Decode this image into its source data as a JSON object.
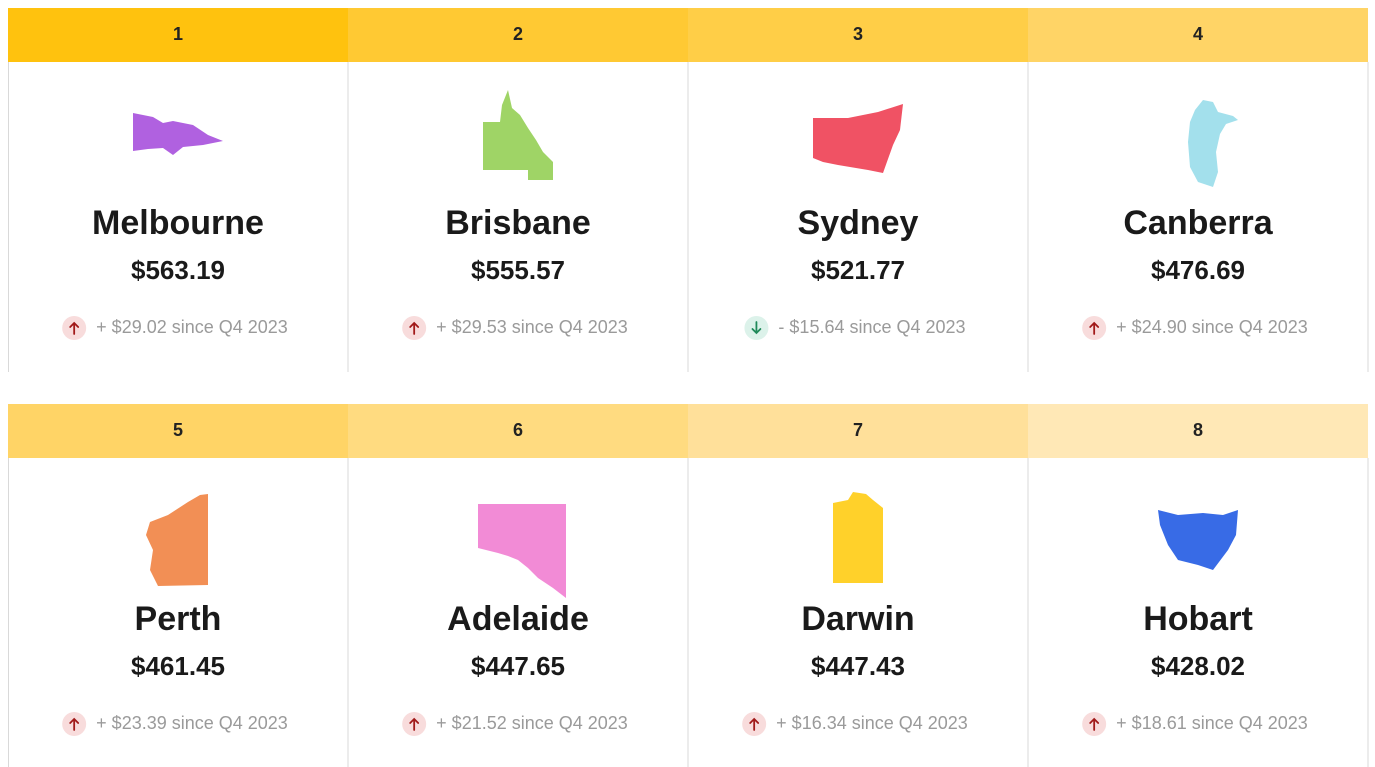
{
  "cards": [
    {
      "rank": "1",
      "city": "Melbourne",
      "price": "$563.19",
      "change": "+ $29.02 since Q4 2023"
    },
    {
      "rank": "2",
      "city": "Brisbane",
      "price": "$555.57",
      "change": "+ $29.53 since Q4 2023"
    },
    {
      "rank": "3",
      "city": "Sydney",
      "price": "$521.77",
      "change": "- $15.64 since Q4 2023"
    },
    {
      "rank": "4",
      "city": "Canberra",
      "price": "$476.69",
      "change": "+ $24.90 since Q4 2023"
    },
    {
      "rank": "5",
      "city": "Perth",
      "price": "$461.45",
      "change": "+ $23.39 since Q4 2023"
    },
    {
      "rank": "6",
      "city": "Adelaide",
      "price": "$447.65",
      "change": "+ $21.52  since Q4 2023"
    },
    {
      "rank": "7",
      "city": "Darwin",
      "price": "$447.43",
      "change": "+ $16.34 since Q4 2023"
    },
    {
      "rank": "8",
      "city": "Hobart",
      "price": "$428.02",
      "change": "+ $18.61 since Q4 2023"
    }
  ]
}
